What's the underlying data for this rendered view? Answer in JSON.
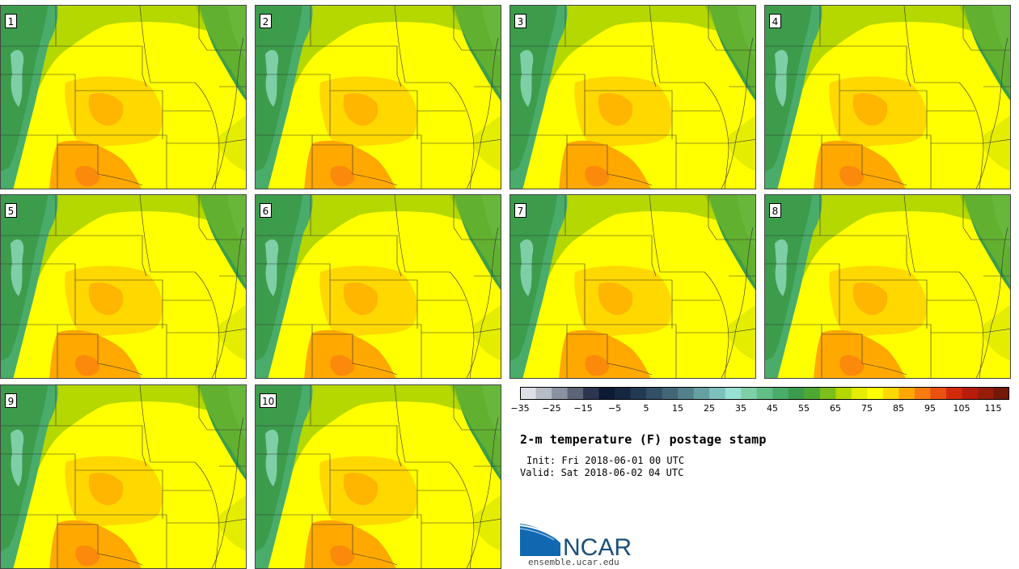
{
  "product": {
    "title": "2-m temperature (F) postage stamp",
    "init": "Init: Fri 2018-06-01 00 UTC",
    "valid": "Valid: Sat 2018-06-02 04 UTC"
  },
  "members": [
    "1",
    "2",
    "3",
    "4",
    "5",
    "6",
    "7",
    "8",
    "9",
    "10"
  ],
  "colorbar": {
    "tick_labels": [
      "−35",
      "−25",
      "−15",
      "−5",
      "5",
      "15",
      "25",
      "35",
      "45",
      "55",
      "65",
      "75",
      "85",
      "95",
      "105",
      "115"
    ],
    "colors": [
      "#dde0e6",
      "#b6bcc6",
      "#8a92a2",
      "#5c6478",
      "#2d3650",
      "#0d1a33",
      "#162741",
      "#233a55",
      "#345066",
      "#426676",
      "#52808b",
      "#66a0a3",
      "#7ec0bb",
      "#98e0d2",
      "#7ecfa6",
      "#62bd86",
      "#4aac6a",
      "#3c9c4c",
      "#4fa832",
      "#7cbe1c",
      "#b4d800",
      "#e4ec00",
      "#ffff00",
      "#ffd800",
      "#ffa800",
      "#f97c10",
      "#ea5010",
      "#d42a0c",
      "#b81c0c",
      "#981c0a",
      "#741808"
    ]
  },
  "logo": {
    "text": "NCAR",
    "url_text": "ensemble.ucar.edu"
  },
  "colors": {
    "mountains": "#4a9a5a",
    "plains_north": "#b8d800",
    "south": "#ffff00",
    "hot": "#ffa800"
  }
}
